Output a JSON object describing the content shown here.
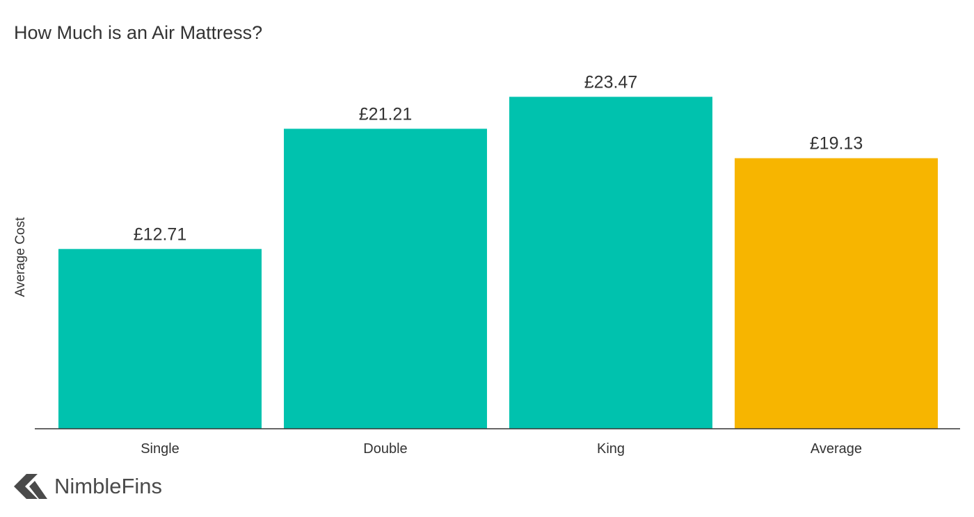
{
  "chart_data": {
    "type": "bar",
    "title": "How Much is an Air Mattress?",
    "xlabel": "",
    "ylabel": "Average Cost",
    "categories": [
      "Single",
      "Double",
      "King",
      "Average"
    ],
    "values": [
      12.71,
      21.21,
      23.47,
      19.13
    ],
    "value_labels": [
      "£12.71",
      "£21.21",
      "£23.47",
      "£19.13"
    ],
    "bar_colors": [
      "#00c2ae",
      "#00c2ae",
      "#00c2ae",
      "#f7b500"
    ],
    "ylim": [
      0,
      25.5
    ],
    "grid": false,
    "legend": "none"
  },
  "brand": {
    "name": "NimbleFins",
    "logo_icon": "nimblefins-chevron-logo",
    "logo_color": "#4a4a4a"
  }
}
